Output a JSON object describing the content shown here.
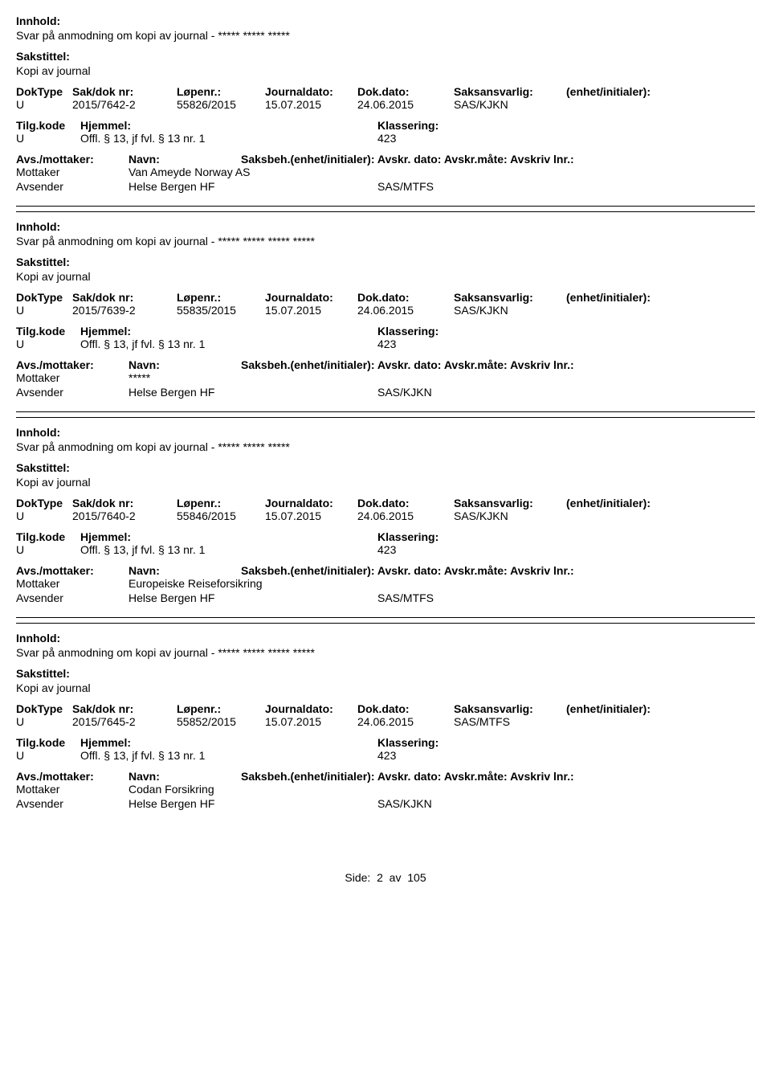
{
  "labels": {
    "innhold": "Innhold:",
    "sakstittel": "Sakstittel:",
    "doktype": "DokType",
    "sakdok": "Sak/dok nr:",
    "lopenr": "Løpenr.:",
    "journaldato": "Journaldato:",
    "dokdato": "Dok.dato:",
    "saksansvarlig": "Saksansvarlig:",
    "enhet_init": "(enhet/initialer):",
    "tilgkode": "Tilg.kode",
    "hjemmel": "Hjemmel:",
    "klassering": "Klassering:",
    "avsmottaker": "Avs./mottaker:",
    "navn": "Navn:",
    "saksbeh_line": "Saksbeh.(enhet/initialer): Avskr. dato:  Avskr.måte:  Avskriv lnr.:",
    "mottaker": "Mottaker",
    "avsender": "Avsender"
  },
  "hjemmel_text": "Offl. § 13, jf fvl. § 13 nr. 1",
  "klass_value": "423",
  "tilg_value": "U",
  "doktype_value": "U",
  "entries": [
    {
      "innhold": "Svar på anmodning om kopi av journal - ***** ***** *****",
      "sakstittel": "Kopi av journal",
      "sakdok": "2015/7642-2",
      "lopenr": "55826/2015",
      "journaldato": "15.07.2015",
      "dokdato": "24.06.2015",
      "saksansvarlig": "SAS/KJKN",
      "mottaker_navn": "Van Ameyde Norway AS",
      "avsender_navn": "Helse Bergen HF",
      "avsender_unit": "SAS/MTFS"
    },
    {
      "innhold": "Svar på anmodning om kopi av journal - ***** ***** ***** *****",
      "sakstittel": "Kopi av journal",
      "sakdok": "2015/7639-2",
      "lopenr": "55835/2015",
      "journaldato": "15.07.2015",
      "dokdato": "24.06.2015",
      "saksansvarlig": "SAS/KJKN",
      "mottaker_navn": "*****",
      "avsender_navn": "Helse Bergen HF",
      "avsender_unit": "SAS/KJKN"
    },
    {
      "innhold": "Svar på anmodning om kopi av journal - ***** ***** *****",
      "sakstittel": "Kopi av journal",
      "sakdok": "2015/7640-2",
      "lopenr": "55846/2015",
      "journaldato": "15.07.2015",
      "dokdato": "24.06.2015",
      "saksansvarlig": "SAS/KJKN",
      "mottaker_navn": "Europeiske Reiseforsikring",
      "avsender_navn": "Helse Bergen HF",
      "avsender_unit": "SAS/MTFS"
    },
    {
      "innhold": "Svar på anmodning om kopi av journal - ***** ***** ***** *****",
      "sakstittel": "Kopi av journal",
      "sakdok": "2015/7645-2",
      "lopenr": "55852/2015",
      "journaldato": "15.07.2015",
      "dokdato": "24.06.2015",
      "saksansvarlig": "SAS/MTFS",
      "mottaker_navn": "Codan Forsikring",
      "avsender_navn": "Helse Bergen HF",
      "avsender_unit": "SAS/KJKN"
    }
  ],
  "footer": {
    "prefix": "Side:",
    "page": "2",
    "sep": "av",
    "total": "105"
  }
}
